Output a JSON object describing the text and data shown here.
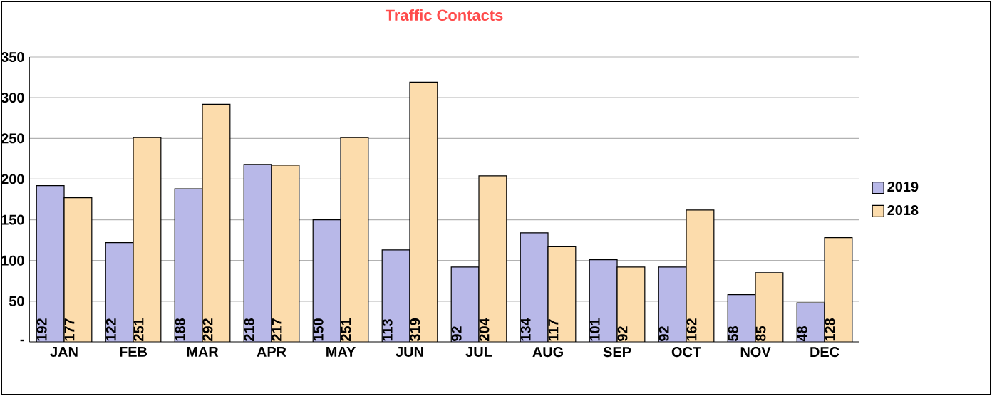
{
  "chart_data": {
    "type": "bar",
    "title": "Traffic Contacts",
    "categories": [
      "JAN",
      "FEB",
      "MAR",
      "APR",
      "MAY",
      "JUN",
      "JUL",
      "AUG",
      "SEP",
      "OCT",
      "NOV",
      "DEC"
    ],
    "series": [
      {
        "name": "2019",
        "color": "#b8b8e8",
        "values": [
          192,
          122,
          188,
          218,
          150,
          113,
          92,
          134,
          101,
          92,
          58,
          48
        ]
      },
      {
        "name": "2018",
        "color": "#fcdcac",
        "values": [
          177,
          251,
          292,
          217,
          251,
          319,
          204,
          117,
          92,
          162,
          85,
          128
        ]
      }
    ],
    "ylim": [
      0,
      350
    ],
    "yticks": [
      {
        "value": 0,
        "label": "-"
      },
      50,
      100,
      150,
      200,
      250,
      300,
      350
    ],
    "grid": "y",
    "legend": "right",
    "data_labels": true
  }
}
